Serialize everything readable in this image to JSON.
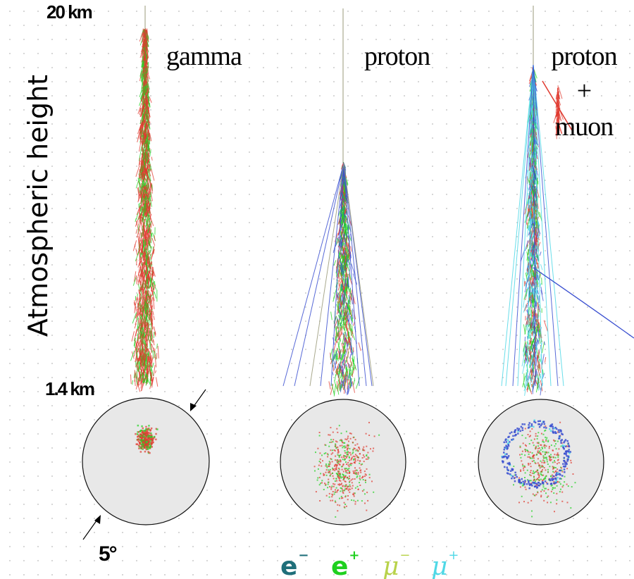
{
  "altitude": {
    "top": "20 km",
    "bottom": "1.4 km"
  },
  "y_axis_title": "Atmospheric height",
  "angle_label": "5°",
  "panels": [
    {
      "id": "gamma",
      "caption_lines": [
        "gamma"
      ]
    },
    {
      "id": "proton",
      "caption_lines": [
        "proton"
      ]
    },
    {
      "id": "proton-muon",
      "caption_lines": [
        "proton",
        "+",
        "muon"
      ]
    }
  ],
  "legend": [
    {
      "symbol": "e",
      "superscript": "−",
      "color": "#1f6f7a"
    },
    {
      "symbol": "e",
      "superscript": "+",
      "color": "#1fd01f"
    },
    {
      "symbol": "μ",
      "superscript": "−",
      "color": "#b8d24a"
    },
    {
      "symbol": "μ",
      "superscript": "+",
      "color": "#4fd8e6"
    }
  ],
  "colors": {
    "gamma_track": "#e03a2f",
    "positron_track": "#22d322",
    "electron_track": "#3a4fd0",
    "muon_track": "#4fd8e6",
    "primary_track": "#9a9a7a",
    "camera_fill": "#e8e8e8"
  }
}
